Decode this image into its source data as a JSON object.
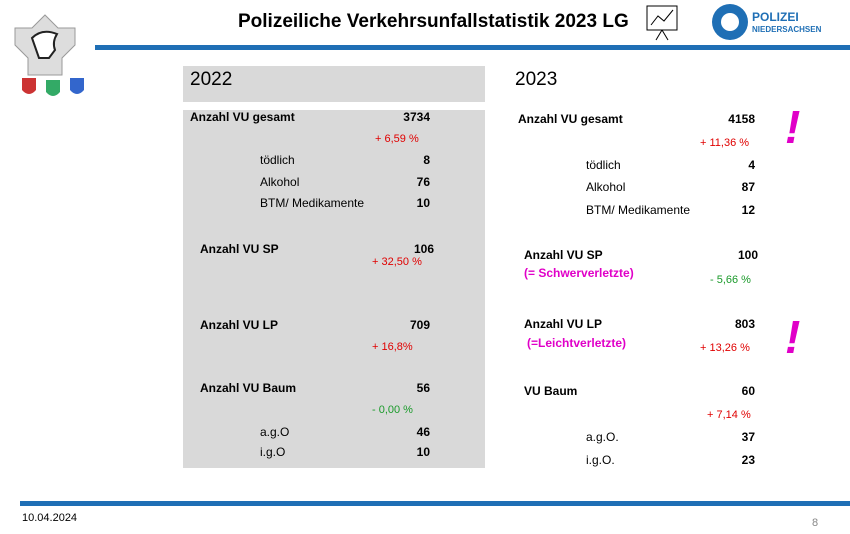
{
  "header": {
    "title": "Polizeiliche Verkehrsunfallstatistik 2023 LG",
    "logo_line1": "POLIZEI",
    "logo_line2": "NIEDERSACHSEN"
  },
  "left": {
    "year": "2022",
    "total": {
      "label": "Anzahl VU gesamt",
      "value": 3734,
      "change": "+ 6,59 %"
    },
    "total_sub": [
      {
        "label": "tödlich",
        "value": 8
      },
      {
        "label": "Alkohol",
        "value": 76
      },
      {
        "label": "BTM/ Medikamente",
        "value": 10
      }
    ],
    "sp": {
      "label": "Anzahl VU SP",
      "value": 106,
      "change": "+ 32,50 %"
    },
    "lp": {
      "label": "Anzahl VU LP",
      "value": 709,
      "change": "+ 16,8%"
    },
    "baum": {
      "label": "Anzahl VU Baum",
      "value": 56,
      "change": "- 0,00 %"
    },
    "baum_sub": [
      {
        "label": "a.g.O",
        "value": 46
      },
      {
        "label": "i.g.O",
        "value": 10
      }
    ]
  },
  "right": {
    "year": "2023",
    "total": {
      "label": "Anzahl VU gesamt",
      "value": 4158,
      "change": "+ 11,36 %"
    },
    "total_sub": [
      {
        "label": "tödlich",
        "value": 4
      },
      {
        "label": "Alkohol",
        "value": 87
      },
      {
        "label": "BTM/ Medikamente",
        "value": 12
      }
    ],
    "sp": {
      "label": "Anzahl VU SP",
      "note": "(= Schwerverletzte)",
      "value": 100,
      "change": "- 5,66 %"
    },
    "lp": {
      "label": "Anzahl VU LP",
      "note": "(=Leichtverletzte)",
      "value": 803,
      "change": "+ 13,26 %"
    },
    "baum": {
      "label": "VU Baum",
      "value": 60,
      "change": "+ 7,14 %"
    },
    "baum_sub": [
      {
        "label": "a.g.O.",
        "value": 37
      },
      {
        "label": "i.g.O.",
        "value": 23
      }
    ],
    "alerts": [
      "!",
      "!"
    ]
  },
  "footer": {
    "date": "10.04.2024",
    "page": "8"
  }
}
